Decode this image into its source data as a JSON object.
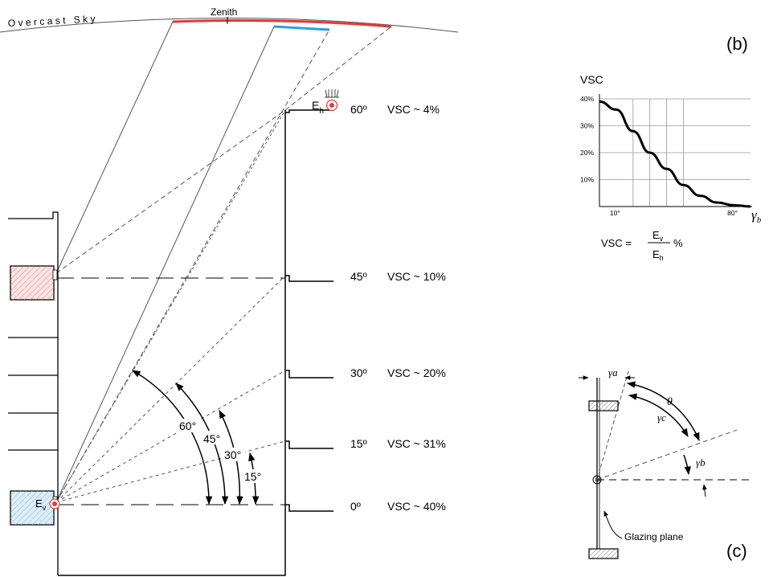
{
  "sky": {
    "label": "Overcast Sky",
    "zenith_label": "Zenith"
  },
  "panel_labels": {
    "b": "(b)",
    "c": "(c)"
  },
  "sensors": {
    "eh_base": "E",
    "eh_sub": "h",
    "ev_base": "E",
    "ev_sub": "v"
  },
  "levels": [
    {
      "angle": "60º",
      "vsc": "VSC ~ 4%"
    },
    {
      "angle": "45º",
      "vsc": "VSC ~ 10%"
    },
    {
      "angle": "30º",
      "vsc": "VSC ~ 20%"
    },
    {
      "angle": "15º",
      "vsc": "VSC ~ 31%"
    },
    {
      "angle": "0º",
      "vsc": "VSC ~ 40%"
    }
  ],
  "arc_angles": [
    "60°",
    "45°",
    "30°",
    "15°"
  ],
  "chart_b": {
    "ylabel": "VSC",
    "xlabel_symbol": "γ",
    "xlabel_sub": "b",
    "yticks": [
      "40%",
      "30%",
      "20%",
      "10%"
    ],
    "xticks": [
      "10°",
      "80°"
    ],
    "formula": {
      "lhs": "VSC =",
      "num_base": "E",
      "num_sub": "v",
      "den_base": "E",
      "den_sub": "h",
      "unit": "%"
    }
  },
  "diagram_c": {
    "gamma_a": "γa",
    "theta": "θ",
    "gamma_c": "γc",
    "gamma_b": "γb",
    "glazing_label": "Glazing plane"
  },
  "chart_data": {
    "type": "line",
    "title": "",
    "ylabel": "VSC",
    "xlabel": "γb",
    "x": [
      0,
      10,
      20,
      30,
      40,
      50,
      60,
      70,
      80,
      90
    ],
    "y": [
      39,
      36,
      28,
      20,
      14,
      8,
      4,
      1.5,
      0.5,
      0
    ],
    "ylim": [
      0,
      40
    ],
    "xlim": [
      0,
      90
    ],
    "yticks_shown": [
      "10%",
      "20%",
      "30%",
      "40%"
    ],
    "xticks_shown": [
      "10°",
      "80°"
    ],
    "grid": true,
    "legend": "none"
  }
}
